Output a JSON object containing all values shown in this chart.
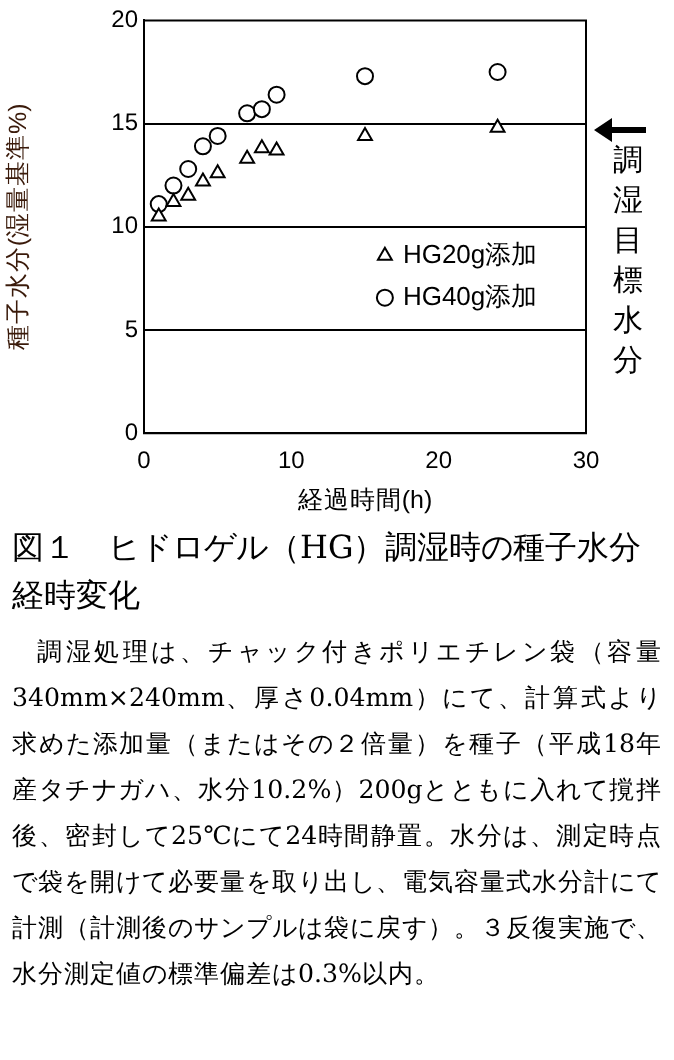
{
  "chart_data": {
    "type": "scatter",
    "title": "図１　ヒドロゲル（HG）調湿時の種子水分経時変化",
    "xlabel": "経過時間(h)",
    "ylabel": "種子水分(湿量基準%)",
    "series": [
      {
        "name": "HG20g添加",
        "color": "#000000",
        "marker": "triangle",
        "x": [
          1,
          2,
          3,
          4,
          5,
          7,
          8,
          9,
          15,
          24
        ],
        "values": [
          10.5,
          11.2,
          11.5,
          12.2,
          12.6,
          13.3,
          13.8,
          13.7,
          14.4,
          14.8
        ]
      },
      {
        "name": "HG40g添加",
        "color": "#000000",
        "marker": "circle",
        "x": [
          1,
          2,
          3,
          4,
          5,
          7,
          8,
          9,
          15,
          24
        ],
        "values": [
          11.1,
          12.0,
          12.8,
          13.9,
          14.4,
          15.5,
          15.7,
          16.4,
          17.3,
          17.5
        ]
      }
    ],
    "xlim": [
      0,
      30
    ],
    "xticks": [
      0,
      10,
      20,
      30
    ],
    "ylim": [
      0,
      20
    ],
    "yticks": [
      0,
      5,
      10,
      15,
      20
    ],
    "grid": "y",
    "legend": "right",
    "annotations": [
      "調湿目標水分",
      "調湿処理は、チャック付きポリエチレン袋（容量340mm×240mm、厚さ0.04mm）にて、計算式より求めた添加量（またはその２倍量）を種子（平成18年産タチナガハ、水分10.2%）200gとともに入れて撹拌後、密封して25℃にて24時間静置。水分は、測定時点で袋を開けて必要量を取り出し、電気容量式水分計にて計測（計測後のサンプルは袋に戻す）。３反復実施で、水分測定値の標準偏差は0.3%以内。"
    ]
  }
}
